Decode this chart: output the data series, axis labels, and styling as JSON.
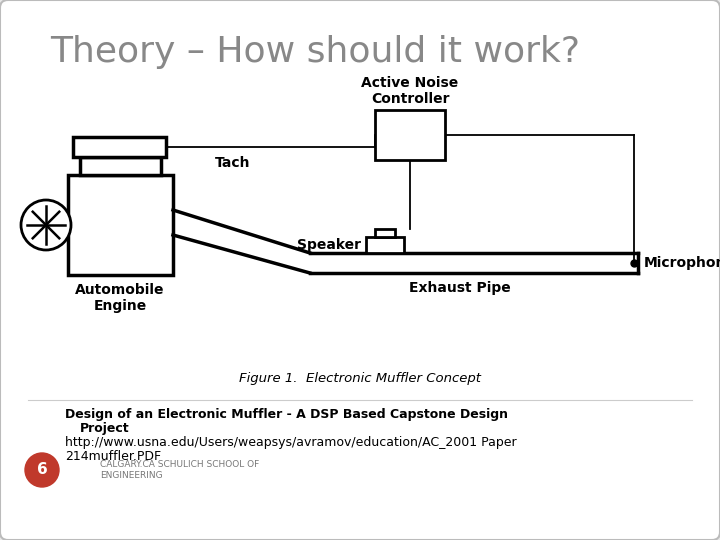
{
  "title": "Theory – How should it work?",
  "title_color": "#888888",
  "title_fontsize": 26,
  "bg_color": "#ffffff",
  "slide_bg": "#e8e8e8",
  "line1_bold": "Design of an Electronic Muffler - A DSP Based Capstone Design",
  "line2_bold": "Project",
  "line3": "http://www.usna.edu/Users/weapsys/avramov/education/AC_2001 Paper",
  "line4": "214muffler.PDF",
  "small_text1": "CALGARY.CA SCHULICH SCHOOL OF",
  "small_text2": "ENGINEERING",
  "circle_color": "#c0392b",
  "circle_number": "6",
  "figure_caption": "Figure 1.  Electronic Muffler Concept"
}
